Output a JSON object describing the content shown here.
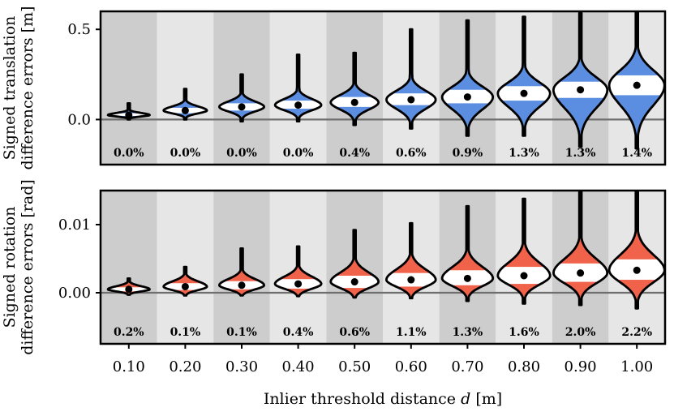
{
  "chart_data": [
    {
      "type": "violin",
      "panel": "top",
      "ylabel": [
        "Signed translation",
        "difference errors [m]"
      ],
      "yticks": [
        {
          "value": 0.0,
          "label": "0.0"
        },
        {
          "value": 0.5,
          "label": "0.5"
        }
      ],
      "ylim": [
        -0.25,
        0.6
      ],
      "color": "#5b8ee0",
      "categories": [
        "0.10",
        "0.20",
        "0.30",
        "0.40",
        "0.50",
        "0.60",
        "0.70",
        "0.80",
        "0.90",
        "1.00"
      ],
      "median": [
        0.025,
        0.05,
        0.07,
        0.08,
        0.095,
        0.11,
        0.125,
        0.145,
        0.165,
        0.19
      ],
      "q1": [
        0.02,
        0.035,
        0.05,
        0.06,
        0.07,
        0.08,
        0.09,
        0.105,
        0.12,
        0.135
      ],
      "q3": [
        0.035,
        0.065,
        0.09,
        0.105,
        0.125,
        0.145,
        0.165,
        0.185,
        0.21,
        0.245
      ],
      "min": [
        0.0,
        0.0,
        -0.01,
        -0.01,
        -0.03,
        -0.05,
        -0.09,
        -0.09,
        -0.15,
        -0.16
      ],
      "max": [
        0.09,
        0.17,
        0.25,
        0.36,
        0.37,
        0.5,
        0.55,
        0.57,
        0.59,
        0.6
      ],
      "outlier_pct": [
        "0.0%",
        "0.0%",
        "0.0%",
        "0.0%",
        "0.4%",
        "0.6%",
        "0.9%",
        "1.3%",
        "1.3%",
        "1.4%"
      ]
    },
    {
      "type": "violin",
      "panel": "bottom",
      "ylabel": [
        "Signed rotation",
        "difference errors [rad]"
      ],
      "yticks": [
        {
          "value": 0.0,
          "label": "0.00"
        },
        {
          "value": 0.01,
          "label": "0.01"
        }
      ],
      "ylim": [
        -0.0075,
        0.015
      ],
      "color": "#f0624a",
      "categories": [
        "0.10",
        "0.20",
        "0.30",
        "0.40",
        "0.50",
        "0.60",
        "0.70",
        "0.80",
        "0.90",
        "1.00"
      ],
      "median": [
        0.0005,
        0.0009,
        0.0011,
        0.0013,
        0.0016,
        0.0019,
        0.0021,
        0.0025,
        0.0029,
        0.0033
      ],
      "q1": [
        0.0002,
        0.0004,
        0.0005,
        0.0006,
        0.0007,
        0.0009,
        0.0011,
        0.0013,
        0.0016,
        0.0019
      ],
      "q3": [
        0.0008,
        0.0014,
        0.0017,
        0.002,
        0.0025,
        0.0029,
        0.0033,
        0.0038,
        0.0043,
        0.0049
      ],
      "min": [
        -0.0003,
        -0.0004,
        -0.0004,
        -0.0005,
        -0.0007,
        -0.0008,
        -0.0012,
        -0.0016,
        -0.0018,
        -0.0023
      ],
      "max": [
        0.0021,
        0.0038,
        0.0065,
        0.0068,
        0.0092,
        0.0102,
        0.0127,
        0.0138,
        0.015,
        0.015
      ],
      "outlier_pct": [
        "0.2%",
        "0.1%",
        "0.1%",
        "0.4%",
        "0.6%",
        "1.1%",
        "1.3%",
        "1.6%",
        "2.0%",
        "2.2%"
      ]
    }
  ],
  "xaxis": {
    "tick_labels": [
      "0.10",
      "0.20",
      "0.30",
      "0.40",
      "0.50",
      "0.60",
      "0.70",
      "0.80",
      "0.90",
      "1.00"
    ],
    "title": "Inlier threshold distance",
    "title_var": "d",
    "title_unit": "[m]"
  },
  "colors": {
    "band_dark": "#cdcdcd",
    "band_light": "#e6e6e6",
    "zero_line": "#6e6e6e"
  }
}
